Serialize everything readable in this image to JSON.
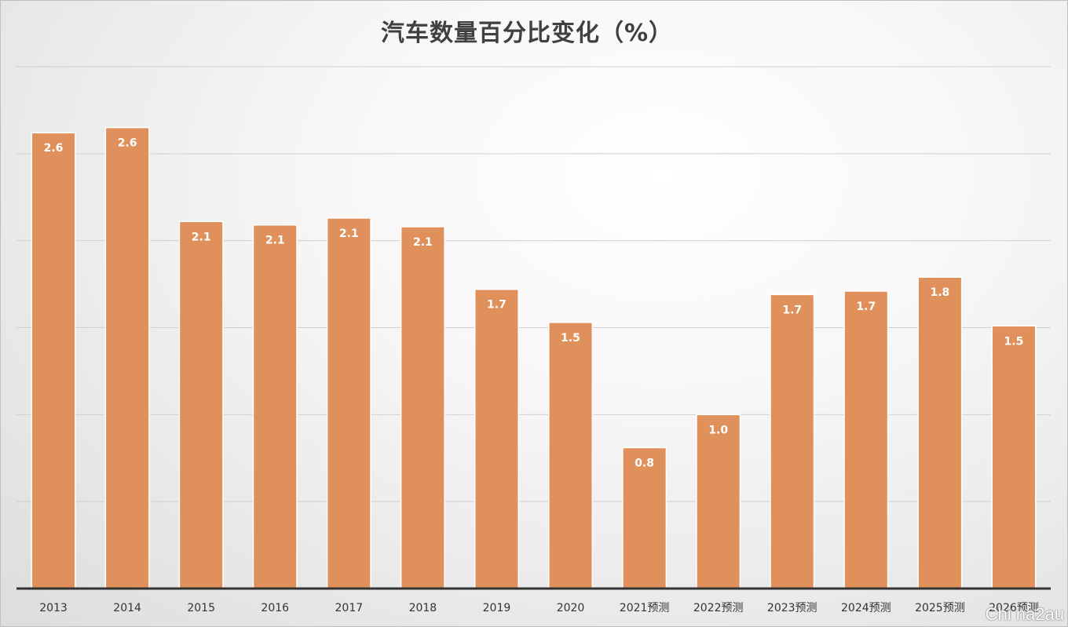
{
  "chart_data": {
    "type": "bar",
    "title": "汽车数量百分比变化（%）",
    "categories": [
      "2013",
      "2014",
      "2015",
      "2016",
      "2017",
      "2018",
      "2019",
      "2020",
      "2021预测",
      "2022预测",
      "2023预测",
      "2024预测",
      "2025预测",
      "2026预测"
    ],
    "values": [
      2.6,
      2.6,
      2.1,
      2.1,
      2.1,
      2.1,
      1.7,
      1.5,
      0.8,
      1.0,
      1.7,
      1.7,
      1.8,
      1.5
    ],
    "heights": [
      2.62,
      2.65,
      2.11,
      2.09,
      2.13,
      2.08,
      1.72,
      1.53,
      0.81,
      1.0,
      1.69,
      1.71,
      1.79,
      1.51
    ],
    "labels": [
      "2.6",
      "2.6",
      "2.1",
      "2.1",
      "2.1",
      "2.1",
      "1.7",
      "1.5",
      "0.8",
      "1.0",
      "1.7",
      "1.7",
      "1.8",
      "1.5"
    ],
    "ylim": [
      0,
      3.0
    ],
    "grid": true,
    "bar_color": "#e0915b"
  },
  "watermark": "Chi na2au"
}
